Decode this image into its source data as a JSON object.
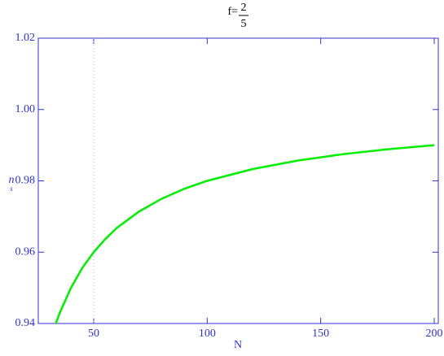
{
  "chart_data": {
    "type": "line",
    "title": {
      "prefix": "f=",
      "numerator": "2",
      "denominator": "5"
    },
    "xlabel": "N",
    "ylabel": {
      "main": "n",
      "sub": "s"
    },
    "x": [
      33.33,
      35,
      40,
      45,
      50,
      55,
      60,
      70,
      80,
      90,
      100,
      120,
      140,
      160,
      180,
      200
    ],
    "series": [
      {
        "color": "#00ee00",
        "values": [
          0.94,
          0.9429,
          0.95,
          0.9556,
          0.96,
          0.9636,
          0.9667,
          0.9714,
          0.975,
          0.9778,
          0.98,
          0.9833,
          0.9857,
          0.9875,
          0.9889,
          0.99
        ]
      }
    ],
    "xlim": [
      25.6,
      201.8
    ],
    "ylim": [
      0.94,
      1.02
    ],
    "xticks": [
      50,
      100,
      150,
      200
    ],
    "yticks": [
      0.94,
      0.96,
      0.98,
      {
        "value": 1,
        "label": "1.00"
      },
      1.02
    ],
    "vline": 50
  }
}
